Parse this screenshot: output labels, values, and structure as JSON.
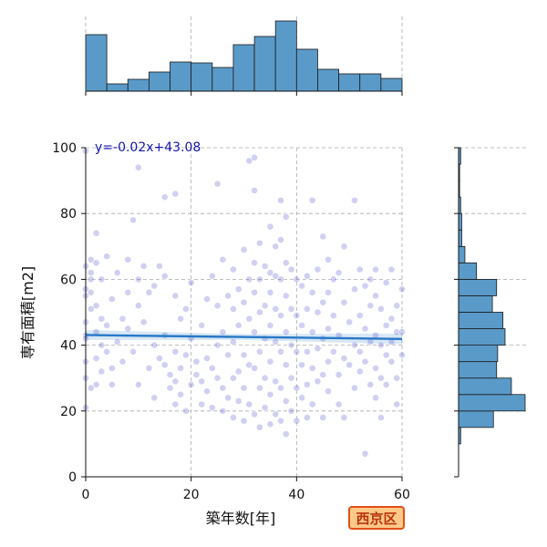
{
  "chart_data": {
    "type": "scatter",
    "xlabel": "築年数[年]",
    "ylabel": "専有面積[m2]",
    "xlim": [
      0,
      60
    ],
    "ylim": [
      0,
      100
    ],
    "x_ticks": [
      "0",
      "20",
      "40",
      "60"
    ],
    "y_ticks": [
      "0",
      "20",
      "40",
      "60",
      "80",
      "100"
    ],
    "grid": true,
    "annotation": "y=-0.02x+43.08",
    "region_label": "西京区",
    "regression": {
      "slope": -0.02,
      "intercept": 43.08,
      "x_range": [
        0,
        60
      ]
    },
    "x_histogram": {
      "bin_edges": [
        0,
        4,
        8,
        12,
        16,
        20,
        24,
        28,
        32,
        36,
        40,
        44,
        48,
        52,
        56,
        60
      ],
      "counts": [
        62,
        8,
        13,
        21,
        32,
        31,
        26,
        51,
        60,
        77,
        46,
        24,
        19,
        19,
        14
      ]
    },
    "y_histogram": {
      "bin_edges": [
        10,
        15,
        20,
        25,
        30,
        35,
        40,
        45,
        50,
        55,
        60,
        65,
        70,
        75,
        80,
        85,
        90,
        95,
        100
      ],
      "counts": [
        2,
        33,
        63,
        50,
        36,
        37,
        44,
        42,
        32,
        36,
        17,
        6,
        3,
        3,
        2,
        1,
        1,
        2
      ]
    },
    "marker_color": "#5555cc",
    "line_color": "#2878c8",
    "bar_color": "#5a9ac8",
    "eq_color": "#1515b0",
    "badge_fill": "#ffc987",
    "badge_border": "#e0501a",
    "badge_text_color": "#b8340c",
    "points": [
      [
        0,
        99
      ],
      [
        1,
        66
      ],
      [
        0,
        64
      ],
      [
        1,
        62
      ],
      [
        0,
        57
      ],
      [
        0,
        55
      ],
      [
        1,
        51
      ],
      [
        0,
        43
      ],
      [
        0,
        42
      ],
      [
        0,
        30
      ],
      [
        1,
        27
      ],
      [
        0,
        21
      ],
      [
        1,
        60
      ],
      [
        1,
        56
      ],
      [
        0,
        47
      ],
      [
        0,
        35
      ],
      [
        2,
        74
      ],
      [
        2,
        65
      ],
      [
        3,
        60
      ],
      [
        2,
        52
      ],
      [
        3,
        48
      ],
      [
        2,
        44
      ],
      [
        3,
        40
      ],
      [
        2,
        36
      ],
      [
        3,
        32
      ],
      [
        2,
        28
      ],
      [
        4,
        67
      ],
      [
        4,
        46
      ],
      [
        4,
        38
      ],
      [
        5,
        54
      ],
      [
        5,
        33
      ],
      [
        5,
        28
      ],
      [
        6,
        62
      ],
      [
        6,
        41
      ],
      [
        7,
        48
      ],
      [
        7,
        35
      ],
      [
        8,
        66
      ],
      [
        8,
        56
      ],
      [
        8,
        45
      ],
      [
        9,
        78
      ],
      [
        9,
        38
      ],
      [
        10,
        94
      ],
      [
        10,
        60
      ],
      [
        10,
        52
      ],
      [
        10,
        28
      ],
      [
        11,
        64
      ],
      [
        11,
        47
      ],
      [
        12,
        33
      ],
      [
        12,
        56
      ],
      [
        13,
        58
      ],
      [
        13,
        40
      ],
      [
        13,
        24
      ],
      [
        14,
        64
      ],
      [
        14,
        36
      ],
      [
        15,
        85
      ],
      [
        15,
        61
      ],
      [
        15,
        43
      ],
      [
        15,
        34
      ],
      [
        16,
        31
      ],
      [
        16,
        27
      ],
      [
        17,
        86
      ],
      [
        17,
        55
      ],
      [
        17,
        38
      ],
      [
        17,
        29
      ],
      [
        17,
        22
      ],
      [
        18,
        48
      ],
      [
        18,
        33
      ],
      [
        18,
        25
      ],
      [
        19,
        51
      ],
      [
        19,
        37
      ],
      [
        19,
        20
      ],
      [
        20,
        42
      ],
      [
        20,
        28
      ],
      [
        20,
        59
      ],
      [
        21,
        35
      ],
      [
        21,
        31
      ],
      [
        22,
        29
      ],
      [
        22,
        22
      ],
      [
        22,
        46
      ],
      [
        23,
        54
      ],
      [
        23,
        36
      ],
      [
        23,
        26
      ],
      [
        24,
        61
      ],
      [
        24,
        33
      ],
      [
        24,
        21
      ],
      [
        25,
        89
      ],
      [
        25,
        52
      ],
      [
        25,
        40
      ],
      [
        25,
        30
      ],
      [
        26,
        66
      ],
      [
        26,
        44
      ],
      [
        26,
        27
      ],
      [
        26,
        20
      ],
      [
        27,
        55
      ],
      [
        27,
        37
      ],
      [
        27,
        24
      ],
      [
        28,
        63
      ],
      [
        28,
        51
      ],
      [
        28,
        41
      ],
      [
        28,
        30
      ],
      [
        28,
        18
      ],
      [
        29,
        57
      ],
      [
        29,
        46
      ],
      [
        29,
        32
      ],
      [
        29,
        23
      ],
      [
        30,
        69
      ],
      [
        30,
        53
      ],
      [
        30,
        37
      ],
      [
        30,
        27
      ],
      [
        30,
        17
      ],
      [
        31,
        96
      ],
      [
        31,
        60
      ],
      [
        31,
        48
      ],
      [
        31,
        34
      ],
      [
        31,
        22
      ],
      [
        32,
        97
      ],
      [
        32,
        87
      ],
      [
        32,
        65
      ],
      [
        32,
        56
      ],
      [
        32,
        44
      ],
      [
        32,
        33
      ],
      [
        32,
        19
      ],
      [
        33,
        71
      ],
      [
        33,
        60
      ],
      [
        33,
        50
      ],
      [
        33,
        38
      ],
      [
        33,
        27
      ],
      [
        33,
        15
      ],
      [
        34,
        64
      ],
      [
        34,
        52
      ],
      [
        34,
        42
      ],
      [
        34,
        30
      ],
      [
        34,
        21
      ],
      [
        35,
        76
      ],
      [
        35,
        62
      ],
      [
        35,
        56
      ],
      [
        35,
        46
      ],
      [
        35,
        35
      ],
      [
        35,
        25
      ],
      [
        35,
        16
      ],
      [
        36,
        70
      ],
      [
        36,
        61
      ],
      [
        36,
        51
      ],
      [
        36,
        41
      ],
      [
        36,
        29
      ],
      [
        36,
        19
      ],
      [
        37,
        84
      ],
      [
        37,
        72
      ],
      [
        37,
        60
      ],
      [
        37,
        49
      ],
      [
        37,
        38
      ],
      [
        37,
        27
      ],
      [
        37,
        17
      ],
      [
        38,
        79
      ],
      [
        38,
        65
      ],
      [
        38,
        55
      ],
      [
        38,
        44
      ],
      [
        38,
        34
      ],
      [
        38,
        23
      ],
      [
        38,
        13
      ],
      [
        39,
        63
      ],
      [
        39,
        51
      ],
      [
        39,
        40
      ],
      [
        39,
        30
      ],
      [
        39,
        20
      ],
      [
        40,
        60
      ],
      [
        40,
        49
      ],
      [
        40,
        38
      ],
      [
        40,
        27
      ],
      [
        40,
        17
      ],
      [
        41,
        58
      ],
      [
        41,
        46
      ],
      [
        41,
        34
      ],
      [
        41,
        24
      ],
      [
        42,
        61
      ],
      [
        42,
        51
      ],
      [
        42,
        38
      ],
      [
        42,
        28
      ],
      [
        42,
        18
      ],
      [
        43,
        84
      ],
      [
        43,
        56
      ],
      [
        43,
        44
      ],
      [
        43,
        33
      ],
      [
        43,
        22
      ],
      [
        44,
        63
      ],
      [
        44,
        50
      ],
      [
        44,
        39
      ],
      [
        44,
        29
      ],
      [
        45,
        73
      ],
      [
        45,
        53
      ],
      [
        45,
        42
      ],
      [
        45,
        31
      ],
      [
        45,
        18
      ],
      [
        46,
        66
      ],
      [
        46,
        56
      ],
      [
        46,
        45
      ],
      [
        46,
        35
      ],
      [
        46,
        26
      ],
      [
        47,
        60
      ],
      [
        47,
        49
      ],
      [
        47,
        38
      ],
      [
        48,
        62
      ],
      [
        48,
        43
      ],
      [
        48,
        31
      ],
      [
        48,
        22
      ],
      [
        49,
        70
      ],
      [
        49,
        53
      ],
      [
        49,
        36
      ],
      [
        49,
        18
      ],
      [
        50,
        47
      ],
      [
        50,
        34
      ],
      [
        51,
        84
      ],
      [
        51,
        57
      ],
      [
        51,
        40
      ],
      [
        51,
        27
      ],
      [
        52,
        63
      ],
      [
        52,
        49
      ],
      [
        52,
        38
      ],
      [
        52,
        32
      ],
      [
        53,
        58
      ],
      [
        53,
        45
      ],
      [
        53,
        35
      ],
      [
        53,
        7
      ],
      [
        54,
        60
      ],
      [
        54,
        52
      ],
      [
        54,
        41
      ],
      [
        54,
        28
      ],
      [
        55,
        63
      ],
      [
        55,
        55
      ],
      [
        55,
        43
      ],
      [
        55,
        33
      ],
      [
        55,
        24
      ],
      [
        56,
        51
      ],
      [
        56,
        40
      ],
      [
        56,
        30
      ],
      [
        56,
        18
      ],
      [
        57,
        59
      ],
      [
        57,
        46
      ],
      [
        57,
        37
      ],
      [
        57,
        28
      ],
      [
        58,
        63
      ],
      [
        58,
        48
      ],
      [
        58,
        41
      ],
      [
        58,
        35
      ],
      [
        59,
        52
      ],
      [
        59,
        44
      ],
      [
        59,
        30
      ],
      [
        59,
        22
      ],
      [
        60,
        57
      ],
      [
        60,
        44
      ],
      [
        60,
        37
      ]
    ]
  }
}
